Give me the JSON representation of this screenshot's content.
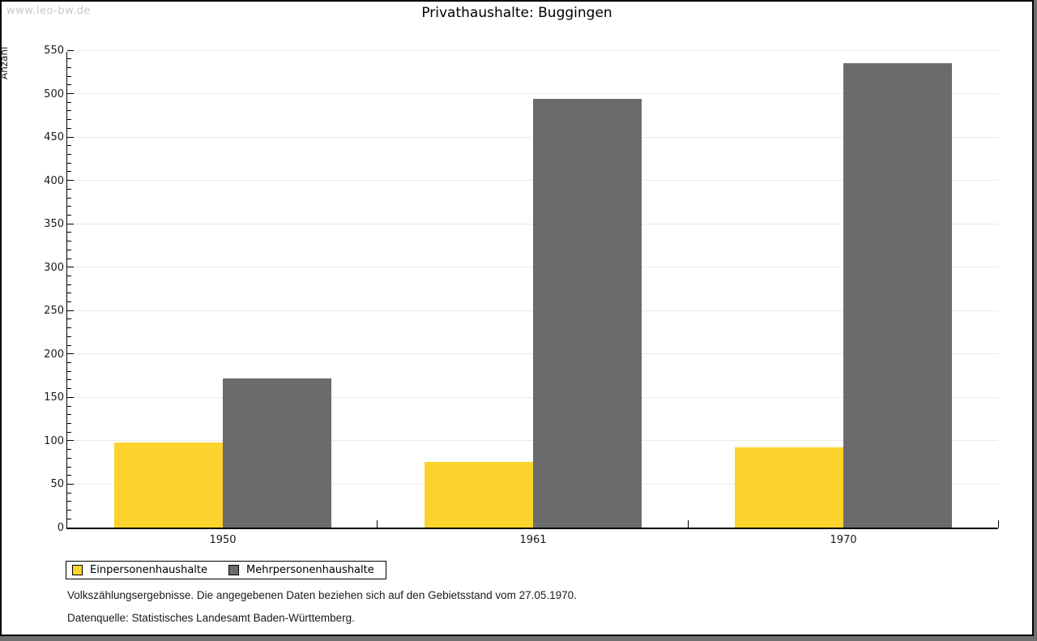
{
  "watermark": "www.leo-bw.de",
  "chart_data": {
    "type": "bar",
    "title": "Privathaushalte: Buggingen",
    "xlabel": "",
    "ylabel": "Anzahl",
    "categories": [
      "1950",
      "1961",
      "1970"
    ],
    "series": [
      {
        "name": "Einpersonenhaushalte",
        "color": "#fcd32d",
        "values": [
          98,
          76,
          92
        ]
      },
      {
        "name": "Mehrpersonenhaushalte",
        "color": "#6b6b6b",
        "values": [
          172,
          494,
          535
        ]
      }
    ],
    "ylim": [
      0,
      550
    ],
    "y_major_step": 50,
    "y_minor_step": 10,
    "grid": true,
    "legend_position": "bottom-left"
  },
  "footer": {
    "line1": "Volkszählungsergebnisse. Die angegebenen Daten beziehen sich auf den Gebietsstand vom 27.05.1970.",
    "line2": "Datenquelle: Statistisches Landesamt Baden-Württemberg."
  }
}
